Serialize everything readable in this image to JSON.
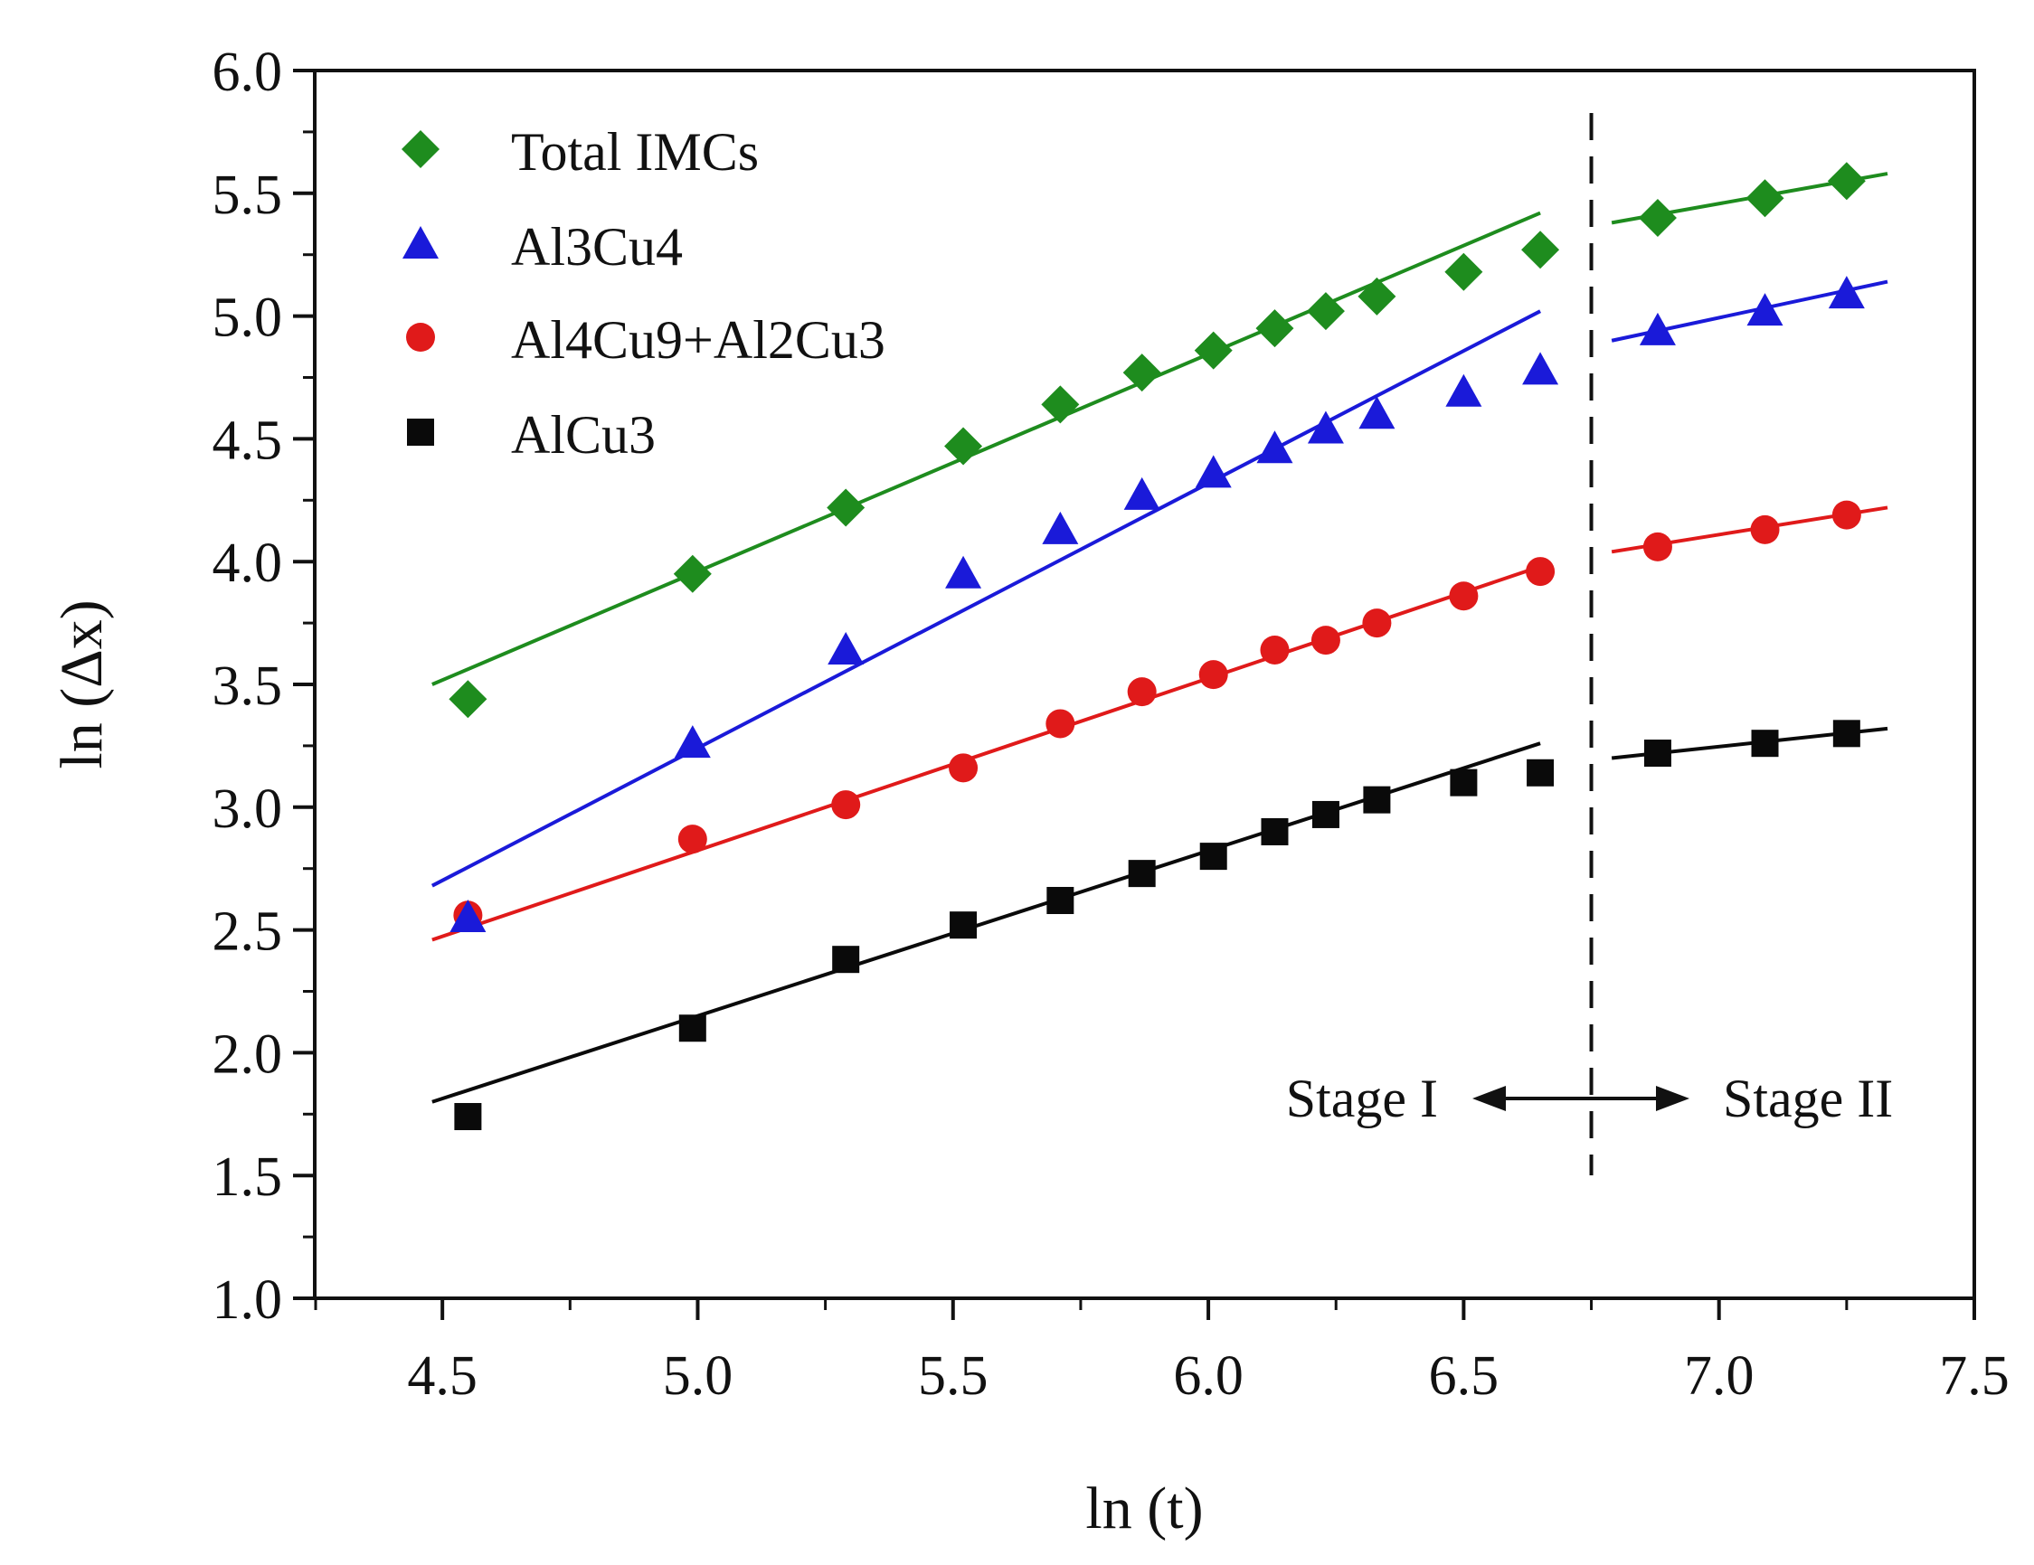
{
  "chart_data": {
    "type": "scatter",
    "title": "",
    "xlabel": "ln (t)",
    "ylabel": "ln (Δx)",
    "xlim": [
      4.25,
      7.5
    ],
    "ylim": [
      1.0,
      6.0
    ],
    "x_ticks": [
      "4.5",
      "5.0",
      "5.5",
      "6.0",
      "6.5",
      "7.0",
      "7.5"
    ],
    "x_tick_values": [
      4.5,
      5.0,
      5.5,
      6.0,
      6.5,
      7.0,
      7.5
    ],
    "y_ticks": [
      "1.0",
      "1.5",
      "2.0",
      "2.5",
      "3.0",
      "3.5",
      "4.0",
      "4.5",
      "5.0",
      "5.5",
      "6.0"
    ],
    "y_tick_values": [
      1.0,
      1.5,
      2.0,
      2.5,
      3.0,
      3.5,
      4.0,
      4.5,
      5.0,
      5.5,
      6.0
    ],
    "grid": false,
    "legend_position": "top-left",
    "series": [
      {
        "name": "Total IMCs",
        "marker": "diamond",
        "color": "#1e8c1e",
        "x": [
          4.55,
          4.99,
          5.29,
          5.52,
          5.71,
          5.87,
          6.01,
          6.13,
          6.23,
          6.33,
          6.5,
          6.65,
          6.88,
          7.09,
          7.25
        ],
        "y": [
          3.44,
          3.95,
          4.22,
          4.47,
          4.64,
          4.77,
          4.86,
          4.95,
          5.02,
          5.08,
          5.18,
          5.27,
          5.4,
          5.48,
          5.55
        ],
        "fits": [
          {
            "x": [
              4.48,
              6.65
            ],
            "y": [
              3.5,
              5.42
            ]
          },
          {
            "x": [
              6.79,
              7.33
            ],
            "y": [
              5.38,
              5.58
            ]
          }
        ]
      },
      {
        "name": "Al3Cu4",
        "marker": "triangle",
        "color": "#1a1ad9",
        "x": [
          4.55,
          4.99,
          5.29,
          5.52,
          5.71,
          5.87,
          6.01,
          6.13,
          6.23,
          6.33,
          6.5,
          6.65,
          6.88,
          7.09,
          7.25
        ],
        "y": [
          2.55,
          3.26,
          3.64,
          3.95,
          4.13,
          4.27,
          4.36,
          4.46,
          4.54,
          4.6,
          4.69,
          4.78,
          4.94,
          5.02,
          5.09
        ],
        "fits": [
          {
            "x": [
              4.48,
              6.65
            ],
            "y": [
              2.68,
              5.02
            ]
          },
          {
            "x": [
              6.79,
              7.33
            ],
            "y": [
              4.9,
              5.14
            ]
          }
        ]
      },
      {
        "name": "Al4Cu9+Al2Cu3",
        "marker": "circle",
        "color": "#e01a1a",
        "x": [
          4.55,
          4.99,
          5.29,
          5.52,
          5.71,
          5.87,
          6.01,
          6.13,
          6.23,
          6.33,
          6.5,
          6.65,
          6.88,
          7.09,
          7.25
        ],
        "y": [
          2.56,
          2.87,
          3.01,
          3.16,
          3.34,
          3.47,
          3.54,
          3.64,
          3.68,
          3.75,
          3.86,
          3.96,
          4.06,
          4.13,
          4.19
        ],
        "fits": [
          {
            "x": [
              4.48,
              6.65
            ],
            "y": [
              2.46,
              3.98
            ]
          },
          {
            "x": [
              6.79,
              7.33
            ],
            "y": [
              4.04,
              4.22
            ]
          }
        ]
      },
      {
        "name": "AlCu3",
        "marker": "square",
        "color": "#0a0a0a",
        "x": [
          4.55,
          4.99,
          5.29,
          5.52,
          5.71,
          5.87,
          6.01,
          6.13,
          6.23,
          6.33,
          6.5,
          6.65,
          6.88,
          7.09,
          7.25
        ],
        "y": [
          1.74,
          2.1,
          2.38,
          2.52,
          2.62,
          2.73,
          2.8,
          2.9,
          2.97,
          3.03,
          3.1,
          3.14,
          3.22,
          3.26,
          3.3
        ],
        "fits": [
          {
            "x": [
              4.48,
              6.65
            ],
            "y": [
              1.8,
              3.26
            ]
          },
          {
            "x": [
              6.79,
              7.33
            ],
            "y": [
              3.2,
              3.32
            ]
          }
        ]
      }
    ],
    "annotations": {
      "divider_x": 6.75,
      "stage1_label": "Stage I",
      "stage2_label": "Stage II"
    }
  }
}
